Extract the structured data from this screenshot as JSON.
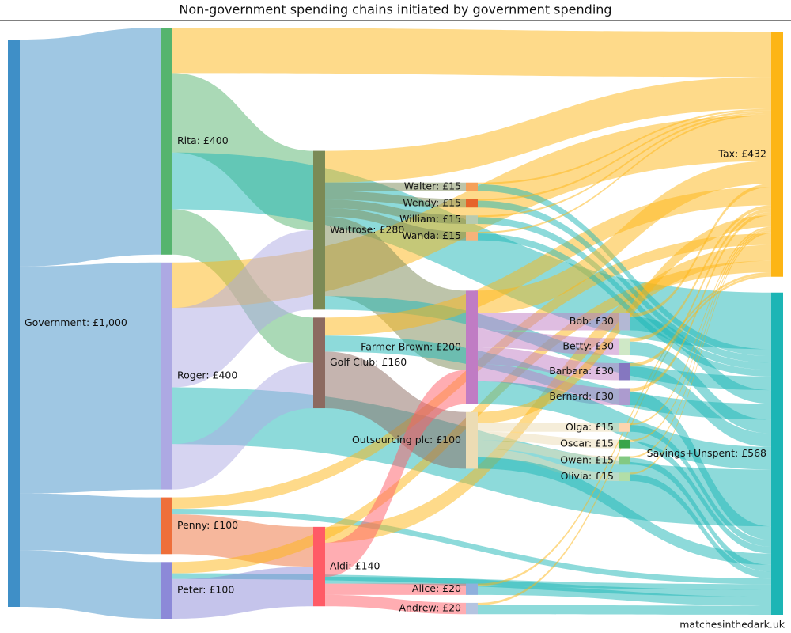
{
  "chart_data": {
    "type": "sankey",
    "title": "Non-government spending chains initiated by government spending",
    "credit": "matchesinthedark.uk",
    "nodes": [
      {
        "label": "Government: £1,000",
        "value": 1000,
        "color": "#3f8fc7"
      },
      {
        "label": "Rita: £400",
        "value": 400,
        "color": "#55b46e"
      },
      {
        "label": "Roger: £400",
        "value": 400,
        "color": "#ada9e3"
      },
      {
        "label": "Penny: £100",
        "value": 100,
        "color": "#ee6f3a"
      },
      {
        "label": "Peter: £100",
        "value": 100,
        "color": "#8c89d8"
      },
      {
        "label": "Waitrose: £280",
        "value": 280,
        "color": "#7b8a56"
      },
      {
        "label": "Golf Club: £160",
        "value": 160,
        "color": "#8c6a60"
      },
      {
        "label": "Aldi: £140",
        "value": 140,
        "color": "#ff5b66"
      },
      {
        "label": "Walter: £15",
        "value": 15,
        "color": "#f5a05a"
      },
      {
        "label": "Wendy: £15",
        "value": 15,
        "color": "#e6632a"
      },
      {
        "label": "William: £15",
        "value": 15,
        "color": "#b8cbb0"
      },
      {
        "label": "Wanda: £15",
        "value": 15,
        "color": "#f7b27a"
      },
      {
        "label": "Farmer Brown: £200",
        "value": 200,
        "color": "#c07cc4"
      },
      {
        "label": "Outsourcing plc: £100",
        "value": 100,
        "color": "#ecdcb4"
      },
      {
        "label": "Alice: £20",
        "value": 20,
        "color": "#8fb0dc"
      },
      {
        "label": "Andrew: £20",
        "value": 20,
        "color": "#b4c4e0"
      },
      {
        "label": "Bob: £30",
        "value": 30,
        "color": "#b3b8d4"
      },
      {
        "label": "Betty: £30",
        "value": 30,
        "color": "#cfe8c6"
      },
      {
        "label": "Barbara: £30",
        "value": 30,
        "color": "#8577c0"
      },
      {
        "label": "Bernard: £30",
        "value": 30,
        "color": "#ac9bcf"
      },
      {
        "label": "Olga: £15",
        "value": 15,
        "color": "#fdd5ae"
      },
      {
        "label": "Oscar: £15",
        "value": 15,
        "color": "#3aa54a"
      },
      {
        "label": "Owen: £15",
        "value": 15,
        "color": "#83c982"
      },
      {
        "label": "Olivia: £15",
        "value": 15,
        "color": "#b2dea7"
      },
      {
        "label": "Tax: £432",
        "value": 432,
        "color": "#fdb515"
      },
      {
        "label": "Savings+Unspent: £568",
        "value": 568,
        "color": "#1cb5b5"
      }
    ],
    "links": [
      {
        "source": 0,
        "target": 1,
        "value": 400
      },
      {
        "source": 0,
        "target": 2,
        "value": 400
      },
      {
        "source": 0,
        "target": 3,
        "value": 100
      },
      {
        "source": 0,
        "target": 4,
        "value": 100
      },
      {
        "source": 1,
        "target": 24,
        "value": 80
      },
      {
        "source": 1,
        "target": 5,
        "value": 140
      },
      {
        "source": 1,
        "target": 25,
        "value": 100
      },
      {
        "source": 1,
        "target": 6,
        "value": 80
      },
      {
        "source": 2,
        "target": 24,
        "value": 80
      },
      {
        "source": 2,
        "target": 5,
        "value": 140
      },
      {
        "source": 2,
        "target": 25,
        "value": 100
      },
      {
        "source": 2,
        "target": 6,
        "value": 80
      },
      {
        "source": 3,
        "target": 24,
        "value": 20
      },
      {
        "source": 3,
        "target": 25,
        "value": 10
      },
      {
        "source": 3,
        "target": 7,
        "value": 70
      },
      {
        "source": 4,
        "target": 24,
        "value": 20
      },
      {
        "source": 4,
        "target": 25,
        "value": 10
      },
      {
        "source": 4,
        "target": 7,
        "value": 70
      },
      {
        "source": 5,
        "target": 24,
        "value": 56
      },
      {
        "source": 5,
        "target": 8,
        "value": 15
      },
      {
        "source": 5,
        "target": 9,
        "value": 15
      },
      {
        "source": 5,
        "target": 10,
        "value": 15
      },
      {
        "source": 5,
        "target": 11,
        "value": 15
      },
      {
        "source": 5,
        "target": 12,
        "value": 140
      },
      {
        "source": 5,
        "target": 25,
        "value": 24
      },
      {
        "source": 6,
        "target": 24,
        "value": 32
      },
      {
        "source": 6,
        "target": 25,
        "value": 28
      },
      {
        "source": 6,
        "target": 13,
        "value": 100
      },
      {
        "source": 7,
        "target": 24,
        "value": 28
      },
      {
        "source": 7,
        "target": 12,
        "value": 60
      },
      {
        "source": 7,
        "target": 25,
        "value": 12
      },
      {
        "source": 7,
        "target": 14,
        "value": 20
      },
      {
        "source": 7,
        "target": 15,
        "value": 20
      },
      {
        "source": 8,
        "target": 24,
        "value": 3
      },
      {
        "source": 8,
        "target": 25,
        "value": 12
      },
      {
        "source": 9,
        "target": 24,
        "value": 3
      },
      {
        "source": 9,
        "target": 25,
        "value": 12
      },
      {
        "source": 10,
        "target": 24,
        "value": 3
      },
      {
        "source": 10,
        "target": 25,
        "value": 12
      },
      {
        "source": 11,
        "target": 24,
        "value": 3
      },
      {
        "source": 11,
        "target": 25,
        "value": 12
      },
      {
        "source": 12,
        "target": 24,
        "value": 40
      },
      {
        "source": 12,
        "target": 16,
        "value": 30
      },
      {
        "source": 12,
        "target": 17,
        "value": 30
      },
      {
        "source": 12,
        "target": 18,
        "value": 30
      },
      {
        "source": 12,
        "target": 19,
        "value": 30
      },
      {
        "source": 12,
        "target": 25,
        "value": 40
      },
      {
        "source": 13,
        "target": 24,
        "value": 20
      },
      {
        "source": 13,
        "target": 20,
        "value": 15
      },
      {
        "source": 13,
        "target": 21,
        "value": 15
      },
      {
        "source": 13,
        "target": 22,
        "value": 15
      },
      {
        "source": 13,
        "target": 23,
        "value": 15
      },
      {
        "source": 13,
        "target": 25,
        "value": 20
      },
      {
        "source": 14,
        "target": 24,
        "value": 4
      },
      {
        "source": 14,
        "target": 25,
        "value": 16
      },
      {
        "source": 15,
        "target": 24,
        "value": 4
      },
      {
        "source": 15,
        "target": 25,
        "value": 16
      },
      {
        "source": 16,
        "target": 24,
        "value": 6
      },
      {
        "source": 16,
        "target": 25,
        "value": 24
      },
      {
        "source": 17,
        "target": 24,
        "value": 6
      },
      {
        "source": 17,
        "target": 25,
        "value": 24
      },
      {
        "source": 18,
        "target": 24,
        "value": 6
      },
      {
        "source": 18,
        "target": 25,
        "value": 24
      },
      {
        "source": 19,
        "target": 24,
        "value": 6
      },
      {
        "source": 19,
        "target": 25,
        "value": 24
      },
      {
        "source": 20,
        "target": 24,
        "value": 3
      },
      {
        "source": 20,
        "target": 25,
        "value": 12
      },
      {
        "source": 21,
        "target": 24,
        "value": 3
      },
      {
        "source": 21,
        "target": 25,
        "value": 12
      },
      {
        "source": 22,
        "target": 24,
        "value": 3
      },
      {
        "source": 22,
        "target": 25,
        "value": 12
      },
      {
        "source": 23,
        "target": 24,
        "value": 3
      },
      {
        "source": 23,
        "target": 25,
        "value": 12
      }
    ]
  }
}
